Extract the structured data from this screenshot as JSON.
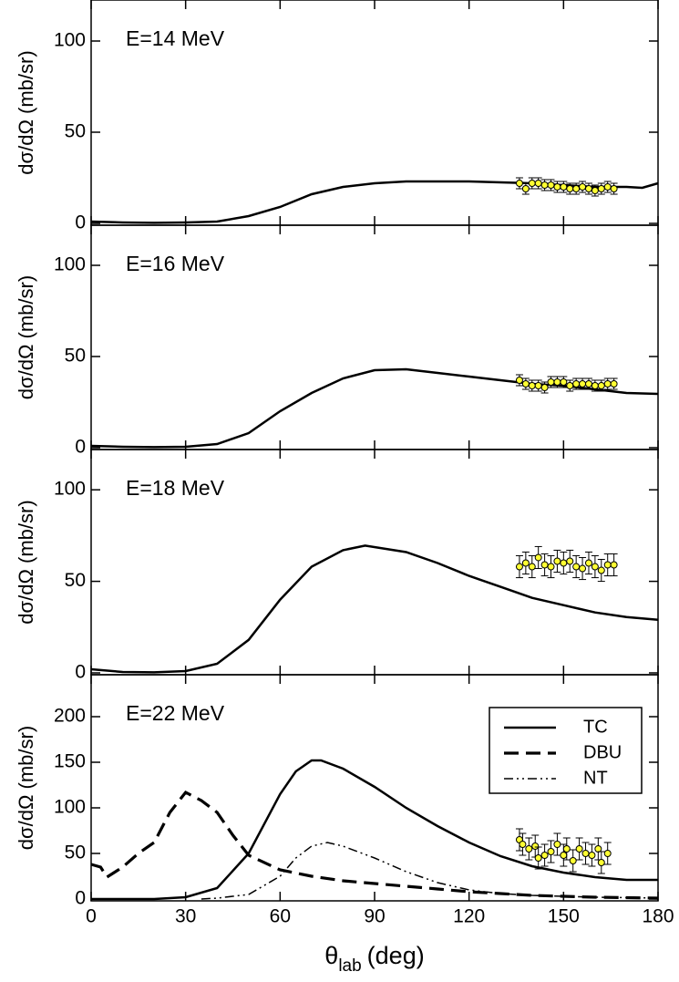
{
  "chart_data": [
    {
      "type": "line",
      "annotation": "E=14 MeV",
      "ylabel": "dσ/dΩ (mb/sr)",
      "xlim": [
        0,
        180
      ],
      "ylim": [
        -1,
        122.5
      ],
      "xticks": [
        0,
        30,
        60,
        90,
        120,
        150,
        180
      ],
      "yticks": [
        0,
        50,
        100
      ],
      "series": [
        {
          "color": "#000000",
          "style": "solid",
          "x": [
            0,
            10,
            20,
            30,
            40,
            50,
            60,
            70,
            80,
            90,
            100,
            110,
            120,
            130,
            140,
            150,
            160,
            170,
            175,
            180
          ],
          "values": [
            1,
            0.5,
            0.3,
            0.5,
            1,
            4,
            9,
            16,
            20,
            22,
            23,
            23,
            23,
            22.5,
            22,
            21,
            20,
            20,
            19.5,
            22
          ]
        }
      ],
      "points": {
        "color": "#ffff33",
        "x": [
          136,
          138,
          140,
          142,
          144,
          146,
          148,
          150,
          152,
          154,
          156,
          158,
          160,
          162,
          164,
          166
        ],
        "values": [
          22,
          19,
          22,
          22,
          21,
          21,
          20,
          20,
          19,
          19,
          20,
          19,
          18,
          19,
          20,
          19
        ],
        "errors": [
          3,
          3,
          3,
          3,
          3,
          3,
          3,
          3,
          3,
          3,
          3,
          3,
          3,
          3,
          3,
          3
        ]
      }
    },
    {
      "type": "line",
      "annotation": "E=16 MeV",
      "ylabel": "dσ/dΩ (mb/sr)",
      "xlim": [
        0,
        180
      ],
      "ylim": [
        -1,
        122
      ],
      "xticks": [
        0,
        30,
        60,
        90,
        120,
        150,
        180
      ],
      "yticks": [
        0,
        50,
        100
      ],
      "series": [
        {
          "color": "#000000",
          "style": "solid",
          "x": [
            0,
            10,
            20,
            30,
            40,
            50,
            60,
            70,
            80,
            90,
            100,
            110,
            120,
            130,
            140,
            150,
            160,
            170,
            180
          ],
          "values": [
            1,
            0.5,
            0.3,
            0.5,
            2,
            8,
            20,
            30,
            38,
            42.5,
            43,
            41,
            39,
            37,
            35,
            34,
            32,
            30,
            29.5
          ]
        }
      ],
      "points": {
        "color": "#ffff33",
        "x": [
          136,
          138,
          140,
          142,
          144,
          146,
          148,
          150,
          152,
          154,
          156,
          158,
          160,
          162,
          164,
          166
        ],
        "values": [
          37,
          35,
          34,
          34,
          33,
          36,
          36,
          36,
          34,
          35,
          35,
          35,
          34,
          34,
          35,
          35
        ],
        "errors": [
          3,
          3,
          3,
          3,
          3,
          3,
          3,
          3,
          3,
          3,
          3,
          3,
          3,
          3,
          3,
          3
        ]
      }
    },
    {
      "type": "line",
      "annotation": "E=18 MeV",
      "ylabel": "dσ/dΩ (mb/sr)",
      "xlim": [
        0,
        180
      ],
      "ylim": [
        -1,
        122
      ],
      "xticks": [
        0,
        30,
        60,
        90,
        120,
        150,
        180
      ],
      "yticks": [
        0,
        50,
        100
      ],
      "series": [
        {
          "color": "#000000",
          "style": "solid",
          "x": [
            0,
            10,
            20,
            30,
            40,
            50,
            60,
            70,
            80,
            87,
            100,
            110,
            120,
            130,
            140,
            150,
            160,
            170,
            180
          ],
          "values": [
            2,
            0.5,
            0.3,
            1,
            5,
            18,
            40,
            58,
            67,
            69.5,
            66,
            60,
            53,
            47,
            41,
            37,
            33,
            30.5,
            29
          ]
        }
      ],
      "points": {
        "color": "#ffff33",
        "x": [
          136,
          138,
          140,
          142,
          144,
          146,
          148,
          150,
          152,
          154,
          156,
          158,
          160,
          162,
          164,
          166
        ],
        "values": [
          58,
          60,
          58,
          63,
          59,
          58,
          61,
          60,
          61,
          58,
          57,
          60,
          58,
          56,
          59,
          59
        ],
        "errors": [
          6,
          6,
          6,
          6,
          6,
          6,
          6,
          6,
          6,
          6,
          6,
          6,
          6,
          6,
          6,
          6
        ]
      }
    },
    {
      "type": "line",
      "annotation": "E=22 MeV",
      "ylabel": "dσ/dΩ (mb/sr)",
      "xlabel": {
        "symbol": "θ",
        "sub": "lab",
        "unit": "(deg)"
      },
      "xlim": [
        0,
        180
      ],
      "ylim": [
        -2,
        246
      ],
      "xticks": [
        0,
        30,
        60,
        90,
        120,
        150,
        180
      ],
      "yticks": [
        0,
        50,
        100,
        150,
        200
      ],
      "legend": "upper right",
      "series": [
        {
          "name": "TC",
          "color": "#000000",
          "style": "solid",
          "x": [
            0,
            20,
            30,
            40,
            50,
            60,
            65,
            70,
            73,
            80,
            90,
            100,
            110,
            120,
            130,
            140,
            150,
            160,
            170,
            180
          ],
          "values": [
            0,
            0,
            2,
            12,
            50,
            115,
            140,
            152,
            152,
            143,
            123,
            100,
            80,
            62,
            47,
            36,
            29,
            24,
            21,
            21
          ]
        },
        {
          "name": "DBU",
          "color": "#000000",
          "style": "dashed",
          "x": [
            0,
            3,
            5,
            10,
            15,
            20,
            25,
            30,
            35,
            40,
            45,
            50,
            60,
            70,
            80,
            90,
            100,
            110,
            120,
            130,
            140,
            150,
            160,
            180
          ],
          "values": [
            38,
            35,
            24,
            35,
            50,
            62,
            95,
            117,
            108,
            95,
            70,
            48,
            32,
            25,
            20,
            17,
            14,
            11,
            8,
            6,
            4,
            3,
            2,
            1
          ]
        },
        {
          "name": "NT",
          "color": "#000000",
          "style": "dashdotdot",
          "x": [
            35,
            40,
            50,
            60,
            65,
            70,
            75,
            80,
            90,
            100,
            110,
            120,
            130,
            140,
            150,
            160,
            180
          ],
          "values": [
            0,
            1,
            5,
            25,
            45,
            58,
            62,
            58,
            45,
            30,
            18,
            10,
            6,
            4,
            3,
            2,
            1
          ]
        }
      ],
      "points": {
        "color": "#ffff33",
        "x": [
          136,
          137,
          139,
          141,
          142,
          144,
          146,
          148,
          150,
          151,
          153,
          155,
          157,
          159,
          161,
          162,
          164
        ],
        "values": [
          65,
          60,
          55,
          58,
          45,
          48,
          52,
          60,
          48,
          55,
          42,
          55,
          50,
          48,
          55,
          40,
          50
        ],
        "errors": [
          12,
          12,
          12,
          12,
          12,
          12,
          12,
          12,
          12,
          12,
          12,
          12,
          12,
          12,
          12,
          12,
          12
        ]
      }
    }
  ]
}
